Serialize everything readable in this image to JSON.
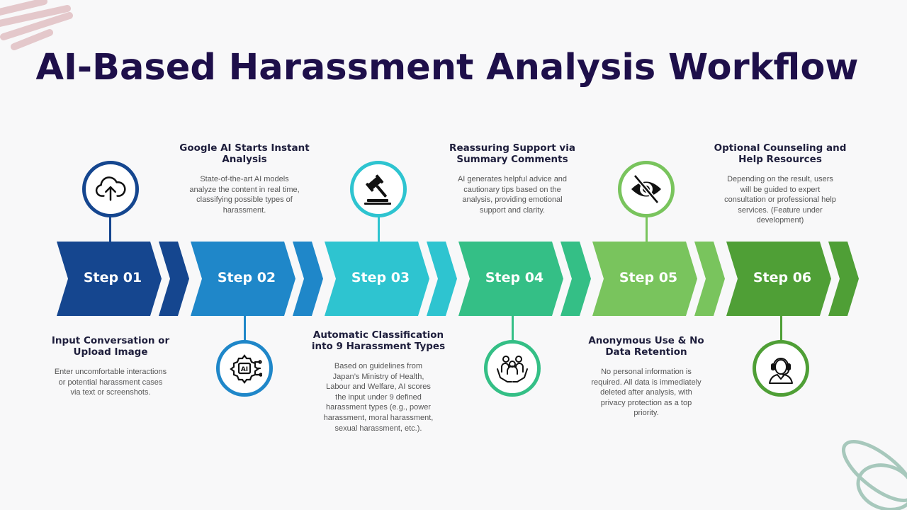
{
  "title": "AI-Based Harassment Analysis Workflow",
  "colors": {
    "title": "#1e0f4a",
    "step1": "#15468f",
    "step2": "#1f87c9",
    "step3": "#2ec4d0",
    "step4": "#34bf86",
    "step5": "#79c45d",
    "step6": "#4f9f36"
  },
  "steps": [
    {
      "label": "Step 01",
      "icon": "cloud-upload-icon",
      "heading": "Input Conversation or Upload Image",
      "text": "Enter uncomfortable interactions or potential harassment cases via text or screenshots."
    },
    {
      "label": "Step 02",
      "icon": "ai-chip-gear-icon",
      "heading": "Google AI Starts Instant Analysis",
      "text": "State-of-the-art AI models analyze the content in real time, classifying possible types of harassment."
    },
    {
      "label": "Step 03",
      "icon": "gavel-icon",
      "heading": "Automatic Classification into 9 Harassment Types",
      "text": "Based on guidelines from Japan’s Ministry of Health, Labour and Welfare, AI scores the input under 9 defined harassment types (e.g., power harassment, moral harassment, sexual harassment, etc.)."
    },
    {
      "label": "Step 04",
      "icon": "supportive-hands-icon",
      "heading": "Reassuring Support via Summary Comments",
      "text": "AI generates helpful advice and cautionary tips based on the analysis, providing emotional support and clarity."
    },
    {
      "label": "Step 05",
      "icon": "eye-slash-icon",
      "heading": "Anonymous Use & No Data Retention",
      "text": "No personal information is required. All data is immediately deleted after analysis, with privacy protection as a top priority."
    },
    {
      "label": "Step 06",
      "icon": "support-agent-icon",
      "heading": "Optional Counseling and Help Resources",
      "text": "Depending on the result, users will be guided to expert consultation or professional help services. (Feature under development)"
    }
  ]
}
